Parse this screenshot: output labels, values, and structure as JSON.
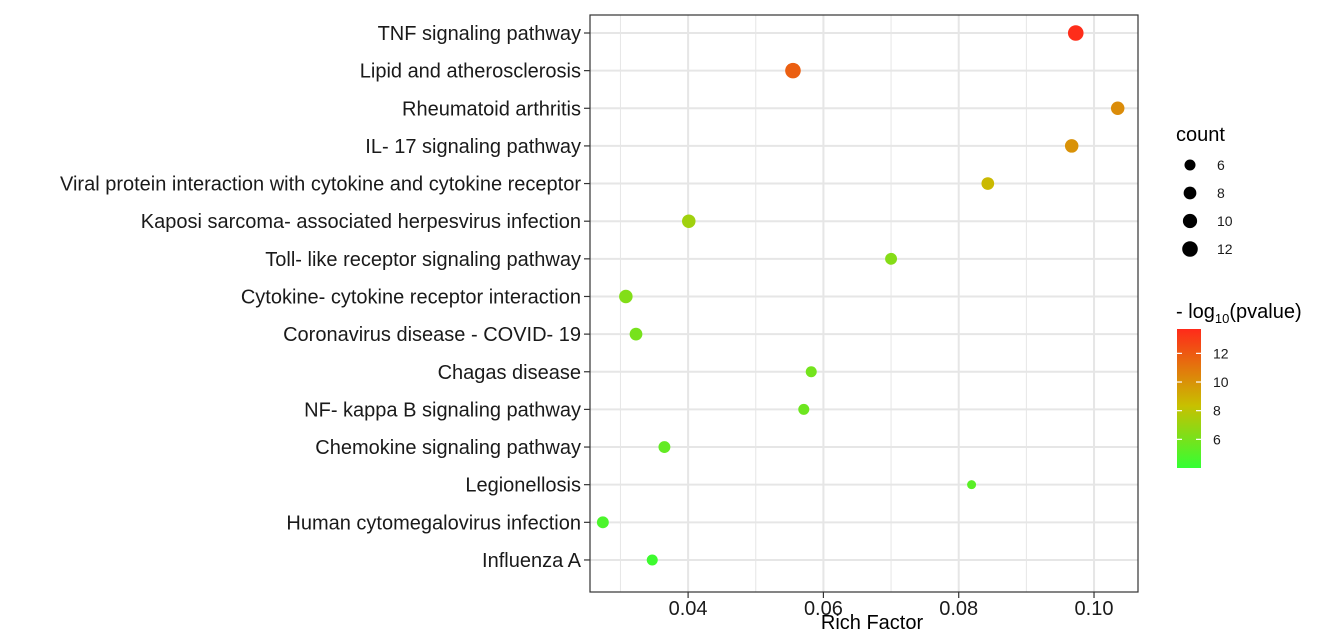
{
  "chart_data": {
    "type": "scatter",
    "xlabel": "Rich Factor",
    "ylabel": "",
    "xlim": [
      0.0255,
      0.1065
    ],
    "x_ticks": [
      0.04,
      0.06,
      0.08,
      0.1
    ],
    "x_tick_labels": [
      "0.04",
      "0.06",
      "0.08",
      "0.10"
    ],
    "grid": true,
    "points": [
      {
        "pathway": "TNF signaling pathway",
        "rich_factor": 0.0973,
        "count": 12,
        "neg_log10_p": 13.6
      },
      {
        "pathway": "Lipid and atherosclerosis",
        "rich_factor": 0.0555,
        "count": 12,
        "neg_log10_p": 11.8
      },
      {
        "pathway": "Rheumatoid arthritis",
        "rich_factor": 0.1035,
        "count": 9,
        "neg_log10_p": 10.2
      },
      {
        "pathway": "IL- 17 signaling pathway",
        "rich_factor": 0.0967,
        "count": 9,
        "neg_log10_p": 10.0
      },
      {
        "pathway": "Viral protein interaction with cytokine and cytokine receptor",
        "rich_factor": 0.0843,
        "count": 8,
        "neg_log10_p": 8.6
      },
      {
        "pathway": "Kaposi sarcoma- associated herpesvirus infection",
        "rich_factor": 0.0401,
        "count": 9,
        "neg_log10_p": 7.2
      },
      {
        "pathway": "Toll- like receptor signaling pathway",
        "rich_factor": 0.07,
        "count": 7,
        "neg_log10_p": 6.4
      },
      {
        "pathway": "Cytokine- cytokine receptor interaction",
        "rich_factor": 0.0308,
        "count": 9,
        "neg_log10_p": 6.3
      },
      {
        "pathway": "Coronavirus disease -  COVID- 19",
        "rich_factor": 0.0323,
        "count": 8,
        "neg_log10_p": 6.0
      },
      {
        "pathway": "Chagas disease",
        "rich_factor": 0.0582,
        "count": 6,
        "neg_log10_p": 5.9
      },
      {
        "pathway": "NF- kappa B signaling pathway",
        "rich_factor": 0.0571,
        "count": 6,
        "neg_log10_p": 5.7
      },
      {
        "pathway": "Chemokine signaling pathway",
        "rich_factor": 0.0365,
        "count": 7,
        "neg_log10_p": 5.4
      },
      {
        "pathway": "Legionellosis",
        "rich_factor": 0.0819,
        "count": 4,
        "neg_log10_p": 5.1
      },
      {
        "pathway": "Human cytomegalovirus infection",
        "rich_factor": 0.0274,
        "count": 7,
        "neg_log10_p": 4.7
      },
      {
        "pathway": "Influenza A",
        "rich_factor": 0.0347,
        "count": 6,
        "neg_log10_p": 4.3
      }
    ],
    "size_legend": {
      "title": "count",
      "values": [
        6,
        8,
        10,
        12
      ],
      "labels": [
        "6",
        "8",
        "10",
        "12"
      ]
    },
    "color_legend": {
      "title_prefix": "- log",
      "title_sub": "10",
      "title_suffix": "(pvalue)",
      "range": [
        4.0,
        13.7
      ],
      "ticks": [
        6,
        8,
        10,
        12
      ],
      "tick_labels": [
        "6",
        "8",
        "10",
        "12"
      ],
      "low_color": "#33ff33",
      "mid_color": "#c8c000",
      "high_color": "#ff2a1a"
    },
    "grid_color": "#e6e6e6",
    "panel_border_color": "#333333"
  }
}
